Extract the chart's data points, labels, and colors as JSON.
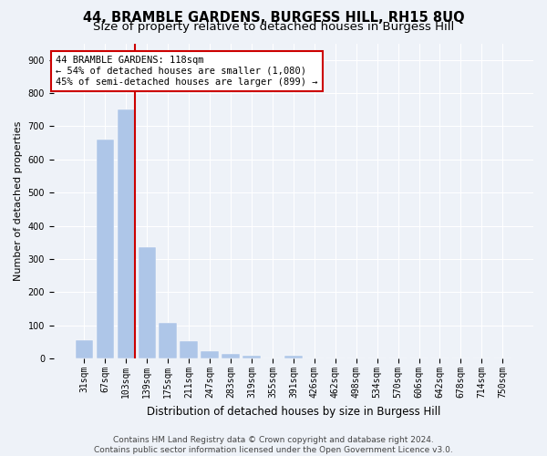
{
  "title": "44, BRAMBLE GARDENS, BURGESS HILL, RH15 8UQ",
  "subtitle": "Size of property relative to detached houses in Burgess Hill",
  "xlabel": "Distribution of detached houses by size in Burgess Hill",
  "ylabel": "Number of detached properties",
  "categories": [
    "31sqm",
    "67sqm",
    "103sqm",
    "139sqm",
    "175sqm",
    "211sqm",
    "247sqm",
    "283sqm",
    "319sqm",
    "355sqm",
    "391sqm",
    "426sqm",
    "462sqm",
    "498sqm",
    "534sqm",
    "570sqm",
    "606sqm",
    "642sqm",
    "678sqm",
    "714sqm",
    "750sqm"
  ],
  "values": [
    55,
    660,
    750,
    335,
    108,
    52,
    24,
    14,
    10,
    0,
    8,
    0,
    0,
    0,
    0,
    0,
    0,
    0,
    0,
    0,
    0
  ],
  "bar_color": "#aec6e8",
  "bar_edge_color": "#aec6e8",
  "vline_color": "#cc0000",
  "annotation_title": "44 BRAMBLE GARDENS: 118sqm",
  "annotation_line1": "← 54% of detached houses are smaller (1,080)",
  "annotation_line2": "45% of semi-detached houses are larger (899) →",
  "annotation_box_color": "#ffffff",
  "annotation_box_edge": "#cc0000",
  "ylim": [
    0,
    950
  ],
  "yticks": [
    0,
    100,
    200,
    300,
    400,
    500,
    600,
    700,
    800,
    900
  ],
  "background_color": "#eef2f8",
  "footer1": "Contains HM Land Registry data © Crown copyright and database right 2024.",
  "footer2": "Contains public sector information licensed under the Open Government Licence v3.0.",
  "title_fontsize": 10.5,
  "subtitle_fontsize": 9.5,
  "xlabel_fontsize": 8.5,
  "ylabel_fontsize": 8,
  "tick_fontsize": 7,
  "footer_fontsize": 6.5,
  "annotation_fontsize": 7.5
}
